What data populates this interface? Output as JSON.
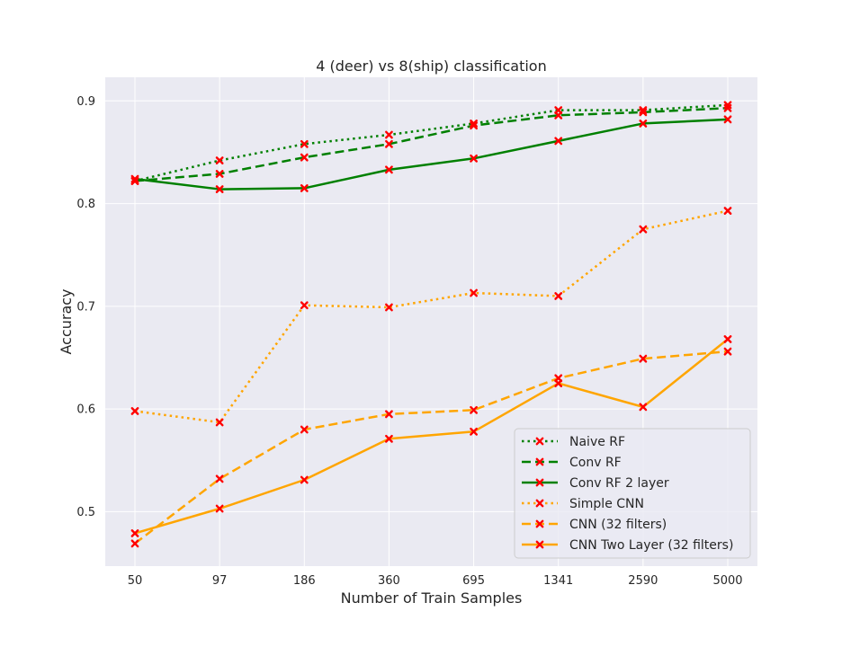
{
  "chart_data": {
    "type": "line",
    "title": "4 (deer) vs 8(ship) classification",
    "xlabel": "Number of Train Samples",
    "ylabel": "Accuracy",
    "categories": [
      "50",
      "97",
      "186",
      "360",
      "695",
      "1341",
      "2590",
      "5000"
    ],
    "ylim": [
      0.447,
      0.923
    ],
    "yticks": [
      "0.5",
      "0.6",
      "0.7",
      "0.8",
      "0.9"
    ],
    "grid": true,
    "legend_position": "lower-right",
    "background_color": "#eaeaf2",
    "marker": "x",
    "marker_color": "#ff0000",
    "series": [
      {
        "name": "Naive RF",
        "color": "#008000",
        "dash": "dotted",
        "values": [
          0.822,
          0.842,
          0.858,
          0.867,
          0.878,
          0.891,
          0.891,
          0.896
        ]
      },
      {
        "name": "Conv RF",
        "color": "#008000",
        "dash": "dashed",
        "values": [
          0.822,
          0.829,
          0.845,
          0.858,
          0.876,
          0.886,
          0.889,
          0.893
        ]
      },
      {
        "name": "Conv RF 2 layer",
        "color": "#008000",
        "dash": "solid",
        "values": [
          0.824,
          0.814,
          0.815,
          0.833,
          0.844,
          0.861,
          0.878,
          0.882
        ]
      },
      {
        "name": "Simple CNN",
        "color": "#ffa500",
        "dash": "dotted",
        "values": [
          0.598,
          0.587,
          0.701,
          0.699,
          0.713,
          0.71,
          0.775,
          0.793
        ]
      },
      {
        "name": "CNN (32 filters)",
        "color": "#ffa500",
        "dash": "dashed",
        "values": [
          0.469,
          0.532,
          0.58,
          0.595,
          0.599,
          0.63,
          0.649,
          0.656
        ]
      },
      {
        "name": "CNN Two Layer (32 filters)",
        "color": "#ffa500",
        "dash": "solid",
        "values": [
          0.479,
          0.503,
          0.531,
          0.571,
          0.578,
          0.625,
          0.602,
          0.668
        ]
      }
    ]
  }
}
